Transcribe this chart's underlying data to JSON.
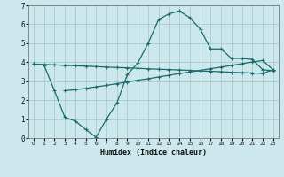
{
  "xlabel": "Humidex (Indice chaleur)",
  "background_color": "#cce8ec",
  "grid_color": "#aacccc",
  "line_color": "#1a6b6b",
  "xlim": [
    -0.5,
    23.5
  ],
  "ylim": [
    0,
    7
  ],
  "xticks": [
    0,
    1,
    2,
    3,
    4,
    5,
    6,
    7,
    8,
    9,
    10,
    11,
    12,
    13,
    14,
    15,
    16,
    17,
    18,
    19,
    20,
    21,
    22,
    23
  ],
  "yticks": [
    0,
    1,
    2,
    3,
    4,
    5,
    6,
    7
  ],
  "series1_x": [
    0,
    1,
    2,
    3,
    4,
    5,
    6,
    7,
    8,
    9,
    10,
    11,
    12,
    13,
    14,
    15,
    16,
    17,
    18,
    19,
    20,
    21,
    22,
    23
  ],
  "series1_y": [
    3.9,
    3.88,
    3.86,
    3.83,
    3.81,
    3.79,
    3.77,
    3.74,
    3.72,
    3.7,
    3.68,
    3.65,
    3.63,
    3.61,
    3.59,
    3.57,
    3.54,
    3.52,
    3.5,
    3.47,
    3.45,
    3.43,
    3.41,
    3.6
  ],
  "series2_x": [
    3,
    4,
    5,
    6,
    7,
    8,
    9,
    10,
    11,
    12,
    13,
    14,
    15,
    16,
    17,
    18,
    19,
    20,
    21,
    22,
    23
  ],
  "series2_y": [
    2.5,
    2.55,
    2.62,
    2.7,
    2.78,
    2.87,
    2.96,
    3.05,
    3.13,
    3.22,
    3.31,
    3.4,
    3.48,
    3.57,
    3.66,
    3.74,
    3.83,
    3.92,
    4.01,
    4.09,
    3.6
  ],
  "series3_x": [
    0,
    1,
    2,
    3,
    4,
    5,
    6,
    7,
    8,
    9,
    10,
    11,
    12,
    13,
    14,
    15,
    16,
    17,
    18,
    19,
    20,
    21,
    22,
    23
  ],
  "series3_y": [
    3.9,
    3.85,
    2.5,
    1.1,
    0.9,
    0.45,
    0.05,
    1.0,
    1.85,
    3.35,
    3.95,
    5.0,
    6.25,
    6.55,
    6.7,
    6.35,
    5.75,
    4.7,
    4.7,
    4.2,
    4.2,
    4.15,
    3.6,
    3.55
  ]
}
